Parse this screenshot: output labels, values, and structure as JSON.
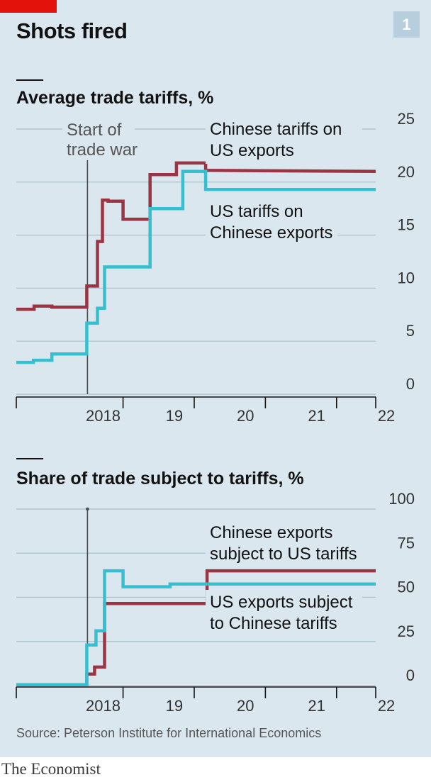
{
  "header": {
    "title": "Shots fired",
    "badge": "1"
  },
  "colors": {
    "chinese_series": "#9b3543",
    "us_series": "#35c0d0",
    "gridline": "#a9c0cc",
    "background": "#dbe7ee",
    "accent_red": "#e3120b"
  },
  "footer": {
    "source": "Source: Peterson Institute for International Economics",
    "logo": "The Economist"
  },
  "chart_data": [
    {
      "type": "line",
      "title": "Average trade tariffs, %",
      "ylim": [
        0,
        25
      ],
      "y_ticks": [
        "0",
        "5",
        "10",
        "15",
        "20",
        "25"
      ],
      "x_ticks": [
        "2018",
        "19",
        "20",
        "21",
        "22"
      ],
      "annotation": {
        "line1": "Start of",
        "line2": "trade war",
        "x": 2018.0
      },
      "series": [
        {
          "name": "Chinese tariffs on US exports",
          "label_lines": [
            "Chinese tariffs on",
            "US exports"
          ],
          "color_key": "chinese_series",
          "x": [
            2017.0,
            2017.25,
            2017.25,
            2017.5,
            2017.5,
            2017.99,
            2017.99,
            2018.14,
            2018.14,
            2018.21,
            2018.21,
            2018.29,
            2018.29,
            2018.5,
            2018.5,
            2018.88,
            2018.88,
            2019.25,
            2019.25,
            2019.66,
            2019.66,
            2022.05
          ],
          "values": [
            8.0,
            8.0,
            8.3,
            8.3,
            8.2,
            8.2,
            10.2,
            10.2,
            14.4,
            14.4,
            18.3,
            18.3,
            18.2,
            18.2,
            16.5,
            16.5,
            20.7,
            20.7,
            21.8,
            21.8,
            21.1,
            21.0
          ]
        },
        {
          "name": "US tariffs on Chinese exports",
          "label_lines": [
            "US tariffs on",
            "Chinese exports"
          ],
          "color_key": "us_series",
          "x": [
            2017.0,
            2017.24,
            2017.24,
            2017.5,
            2017.5,
            2017.99,
            2017.99,
            2018.14,
            2018.14,
            2018.24,
            2018.24,
            2018.88,
            2018.88,
            2019.34,
            2019.34,
            2019.66,
            2019.66,
            2022.05
          ],
          "values": [
            3.0,
            3.0,
            3.2,
            3.2,
            3.8,
            3.8,
            6.7,
            6.7,
            8.1,
            8.1,
            12.0,
            12.0,
            17.5,
            17.5,
            21.0,
            21.0,
            19.3,
            19.3
          ]
        }
      ]
    },
    {
      "type": "line",
      "title": "Share of trade subject to tariffs, %",
      "ylim": [
        0,
        100
      ],
      "y_ticks": [
        "0",
        "25",
        "50",
        "75",
        "100"
      ],
      "x_ticks": [
        "2018",
        "19",
        "20",
        "21",
        "22"
      ],
      "annotation": {
        "x": 2018.0
      },
      "series": [
        {
          "name": "Chinese exports subject to US tariffs",
          "label_lines": [
            "Chinese exports",
            "subject to US tariffs"
          ],
          "color_key": "chinese_series",
          "x": [
            2017.0,
            2017.99,
            2017.99,
            2018.1,
            2018.1,
            2018.24,
            2018.24,
            2018.65,
            2018.65,
            2019.68,
            2019.68,
            2021.2,
            2021.2,
            2022.05
          ],
          "values": [
            0.5,
            0.5,
            6.5,
            6.5,
            10.5,
            10.5,
            46.5,
            46.5,
            46.5,
            46.5,
            65.0,
            65.0,
            65.0,
            65.0
          ]
        },
        {
          "name": "US exports subject to Chinese tariffs",
          "label_lines": [
            "US exports subject",
            "to Chinese tariffs"
          ],
          "color_key": "us_series",
          "x": [
            2017.0,
            2017.99,
            2017.99,
            2018.12,
            2018.12,
            2018.24,
            2018.24,
            2018.5,
            2018.5,
            2019.16,
            2019.16,
            2022.05
          ],
          "values": [
            0.5,
            0.5,
            23.0,
            23.0,
            31.0,
            31.0,
            65.0,
            65.0,
            56.0,
            56.0,
            57.5,
            57.5
          ]
        }
      ]
    }
  ]
}
